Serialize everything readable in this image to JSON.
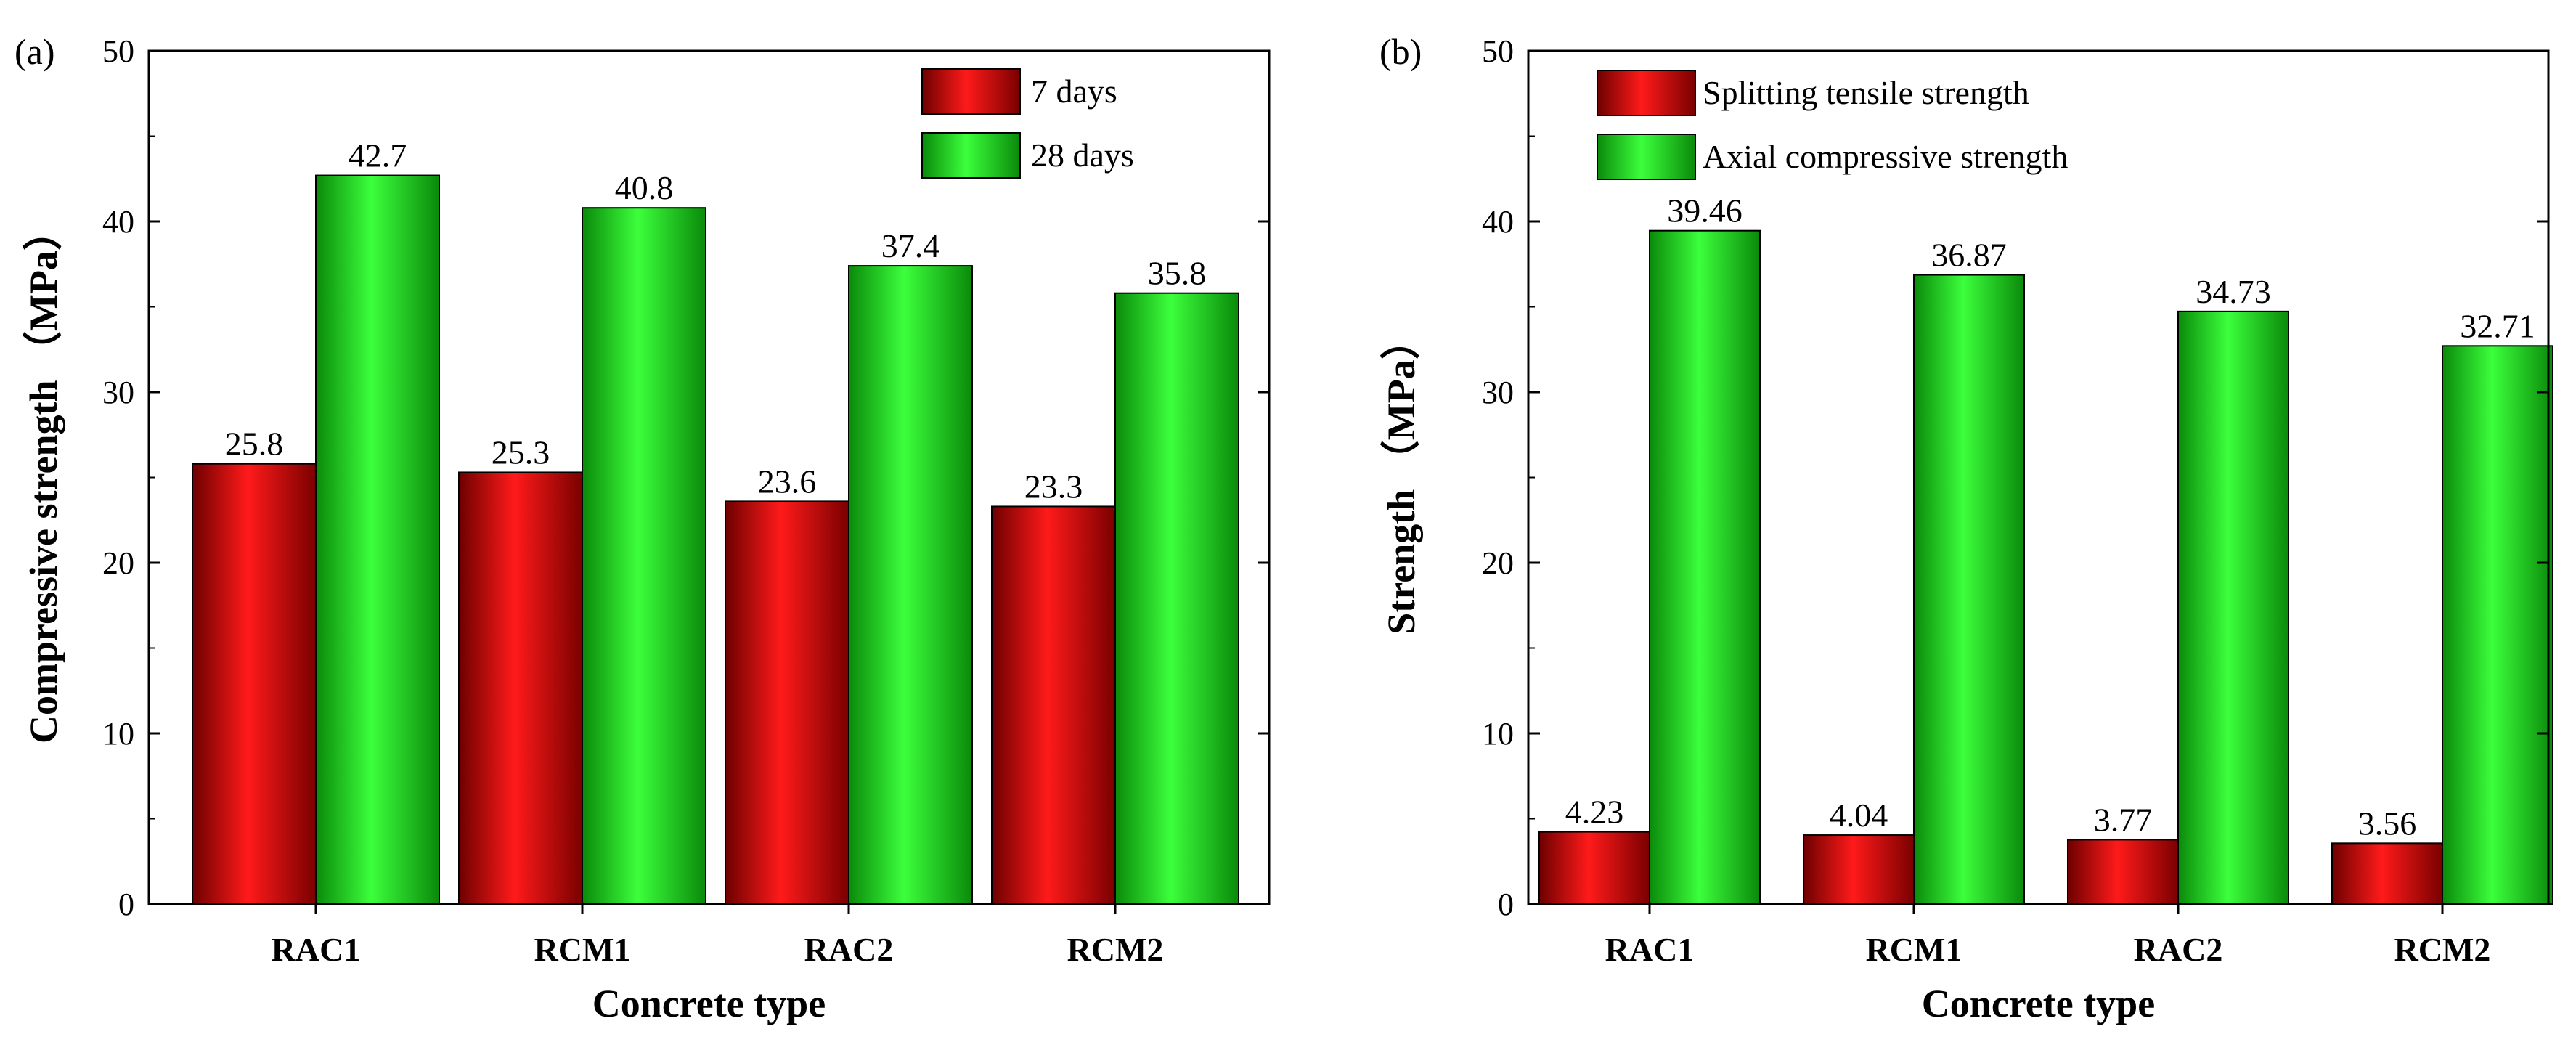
{
  "chart_data": [
    {
      "type": "bar",
      "panel_label": "(a)",
      "title": "",
      "xlabel": "Concrete type",
      "ylabel": "Compressive strength （MPa）",
      "ylim": [
        0,
        50
      ],
      "yticks": [
        0,
        10,
        20,
        30,
        40,
        50
      ],
      "categories": [
        "RAC1",
        "RCM1",
        "RAC2",
        "RCM2"
      ],
      "series": [
        {
          "name": "7 days",
          "legend_label": "  7 days",
          "color": "#d90000",
          "values": [
            25.8,
            25.3,
            23.6,
            23.3
          ],
          "labels": [
            "25.8",
            "25.3",
            "23.6",
            "23.3"
          ]
        },
        {
          "name": "28 days",
          "legend_label": "28 days",
          "color": "#14d814",
          "values": [
            42.7,
            40.8,
            37.4,
            35.8
          ],
          "labels": [
            "42.7",
            "40.8",
            "37.4",
            "35.8"
          ]
        }
      ],
      "legend_position": "top-right",
      "grid": false
    },
    {
      "type": "bar",
      "panel_label": "(b)",
      "title": "",
      "xlabel": "Concrete type",
      "ylabel": "Strength （MPa）",
      "ylim": [
        0,
        50
      ],
      "yticks": [
        0,
        10,
        20,
        30,
        40,
        50
      ],
      "categories": [
        "RAC1",
        "RCM1",
        "RAC2",
        "RCM2"
      ],
      "series": [
        {
          "name": "Splitting tensile strength",
          "legend_label": "Splitting tensile strength",
          "color": "#d90000",
          "values": [
            4.23,
            4.04,
            3.77,
            3.56
          ],
          "labels": [
            "4.23",
            "4.04",
            "3.77",
            "3.56"
          ]
        },
        {
          "name": "Axial compressive strength",
          "legend_label": "Axial compressive strength",
          "color": "#14d814",
          "values": [
            39.46,
            36.87,
            34.73,
            32.71
          ],
          "labels": [
            "39.46",
            "36.87",
            "34.73",
            "32.71"
          ]
        }
      ],
      "legend_position": "top-left",
      "grid": false
    }
  ]
}
